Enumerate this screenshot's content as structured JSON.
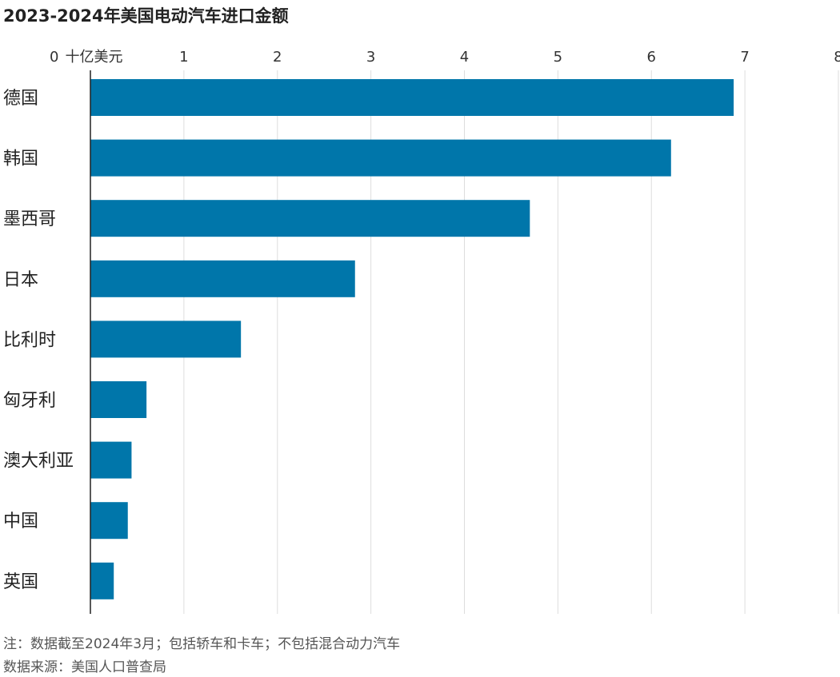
{
  "chart_data": {
    "type": "bar",
    "orientation": "horizontal",
    "title": "2023-2024年美国电动汽车进口金额",
    "unit_label": "十亿美元",
    "xlim": [
      0,
      8
    ],
    "ticks": [
      0,
      1,
      2,
      3,
      4,
      5,
      6,
      7,
      8
    ],
    "grid": true,
    "categories": [
      "德国",
      "韩国",
      "墨西哥",
      "日本",
      "比利时",
      "匈牙利",
      "澳大利亚",
      "中国",
      "英国"
    ],
    "values": [
      6.88,
      6.21,
      4.7,
      2.83,
      1.61,
      0.6,
      0.44,
      0.4,
      0.25
    ],
    "bar_color": "#0076aa",
    "notes": [
      "注：数据截至2024年3月；包括轿车和卡车；不包括混合动力汽车",
      "数据来源：美国人口普查局"
    ]
  }
}
